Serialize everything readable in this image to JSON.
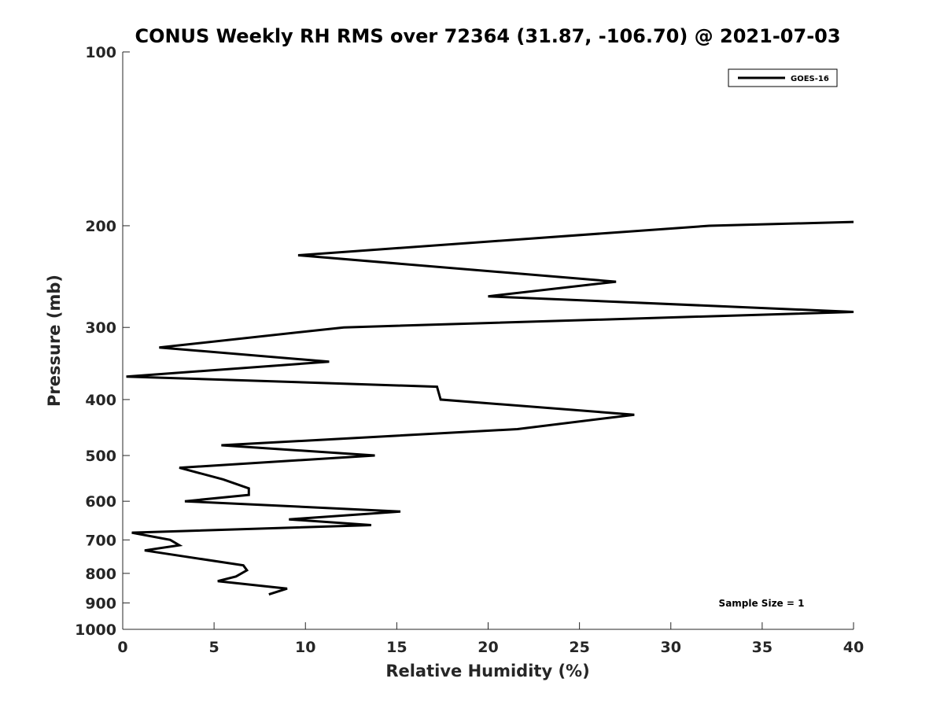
{
  "chart_data": {
    "type": "line",
    "title": "CONUS Weekly RH RMS over 72364 (31.87, -106.70) @ 2021-07-03",
    "xlabel": "Relative Humidity (%)",
    "ylabel": "Pressure (mb)",
    "xlim": [
      0,
      40
    ],
    "ylim": [
      100,
      1000
    ],
    "yscale": "log",
    "y_reversed": true,
    "grid": false,
    "legend_position": "top-right",
    "x_ticks": [
      "0",
      "5",
      "10",
      "15",
      "20",
      "25",
      "30",
      "35",
      "40"
    ],
    "y_ticks": [
      "100",
      "200",
      "300",
      "400",
      "500",
      "600",
      "700",
      "800",
      "900",
      "1000"
    ],
    "series": [
      {
        "name": "GOES-16",
        "color": "#000000",
        "points": [
          [
            40.0,
            197
          ],
          [
            32.1,
            200
          ],
          [
            9.6,
            225
          ],
          [
            27.0,
            250
          ],
          [
            20.0,
            265
          ],
          [
            40.0,
            282
          ],
          [
            12.1,
            300
          ],
          [
            2.0,
            325
          ],
          [
            11.3,
            344
          ],
          [
            0.2,
            365
          ],
          [
            17.2,
            380
          ],
          [
            17.4,
            400
          ],
          [
            28.0,
            425
          ],
          [
            21.6,
            450
          ],
          [
            5.4,
            480
          ],
          [
            13.8,
            500
          ],
          [
            3.1,
            525
          ],
          [
            5.5,
            550
          ],
          [
            6.9,
            570
          ],
          [
            6.9,
            585
          ],
          [
            3.4,
            600
          ],
          [
            15.2,
            625
          ],
          [
            9.1,
            645
          ],
          [
            13.6,
            660
          ],
          [
            0.5,
            680
          ],
          [
            2.6,
            700
          ],
          [
            3.1,
            715
          ],
          [
            1.2,
            730
          ],
          [
            6.6,
            775
          ],
          [
            6.8,
            790
          ],
          [
            6.2,
            810
          ],
          [
            5.2,
            825
          ],
          [
            9.0,
            850
          ],
          [
            8.0,
            870
          ]
        ]
      }
    ],
    "annotation": "Sample Size = 1"
  }
}
